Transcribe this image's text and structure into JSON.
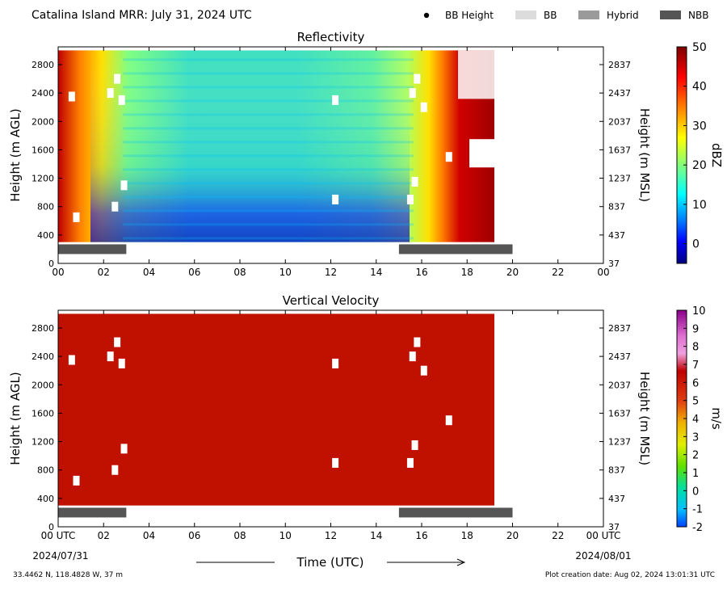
{
  "header": {
    "title": "Catalina Island MRR:  July 31, 2024 UTC",
    "legend": [
      {
        "label": "BB Height",
        "kind": "dot",
        "color": "#000000"
      },
      {
        "label": "BB",
        "kind": "swatch",
        "color": "#dcdcdc"
      },
      {
        "label": "Hybrid",
        "kind": "swatch",
        "color": "#9a9a9a"
      },
      {
        "label": "NBB",
        "kind": "swatch",
        "color": "#555555"
      }
    ]
  },
  "footer": {
    "location": "33.4462 N, 118.4828 W, 37 m",
    "created": "Plot creation date: Aug 02, 2024 13:01:31 UTC",
    "xlabel": "Time (UTC)",
    "date_start": "2024/07/31",
    "date_end": "2024/08/01"
  },
  "chart_data": [
    {
      "type": "heatmap",
      "title": "Reflectivity",
      "ylabel": "Height (m AGL)",
      "ylabel_right": "Height (m MSL)",
      "xlim": [
        0,
        24
      ],
      "ylim": [
        0,
        3050
      ],
      "x_ticks": [
        "00",
        "02",
        "04",
        "06",
        "08",
        "10",
        "12",
        "14",
        "16",
        "18",
        "20",
        "22",
        "00"
      ],
      "y_ticks": [
        0,
        400,
        800,
        1200,
        1600,
        2000,
        2400,
        2800
      ],
      "y_ticks_right": [
        37,
        437,
        837,
        1237,
        1637,
        2037,
        2437,
        2837
      ],
      "data_extent": {
        "time_start": 0,
        "time_end": 19.2,
        "height_min": 300,
        "height_max": 3000
      },
      "bright_band_bars": [
        {
          "start": 0,
          "end": 3,
          "class": "NBB"
        },
        {
          "start": 15,
          "end": 20,
          "class": "NBB"
        }
      ],
      "colorbar": {
        "label": "dBZ",
        "min": -5,
        "max": 50,
        "ticks": [
          0,
          10,
          20,
          30,
          40,
          50
        ],
        "colors": [
          "#00007f",
          "#0000ff",
          "#007fff",
          "#00ffff",
          "#7fff7f",
          "#ffff00",
          "#ff7f00",
          "#ff0000",
          "#7f0000"
        ]
      }
    },
    {
      "type": "heatmap",
      "title": "Vertical Velocity",
      "ylabel": "Height (m AGL)",
      "ylabel_right": "Height (m MSL)",
      "xlim": [
        0,
        24
      ],
      "ylim": [
        0,
        3050
      ],
      "x_ticks": [
        "00 UTC",
        "02",
        "04",
        "06",
        "08",
        "10",
        "12",
        "14",
        "16",
        "18",
        "20",
        "22",
        "00 UTC"
      ],
      "y_ticks": [
        0,
        400,
        800,
        1200,
        1600,
        2000,
        2400,
        2800
      ],
      "y_ticks_right": [
        37,
        437,
        837,
        1237,
        1637,
        2037,
        2437,
        2837
      ],
      "data_extent": {
        "time_start": 0,
        "time_end": 19.2,
        "height_min": 300,
        "height_max": 3000
      },
      "bright_band_bars": [
        {
          "start": 0,
          "end": 3,
          "class": "NBB"
        },
        {
          "start": 15,
          "end": 20,
          "class": "NBB"
        }
      ],
      "colorbar": {
        "label": "m/s",
        "min": -2,
        "max": 10,
        "ticks": [
          -2,
          -1,
          0,
          1,
          2,
          3,
          4,
          5,
          6,
          7,
          8,
          9,
          10
        ],
        "colors": [
          "#0040ff",
          "#00bfff",
          "#00e0a0",
          "#60e000",
          "#e0f000",
          "#f0b000",
          "#e04000",
          "#c00000",
          "#d02060",
          "#f070d0",
          "#a000a0"
        ]
      }
    }
  ]
}
